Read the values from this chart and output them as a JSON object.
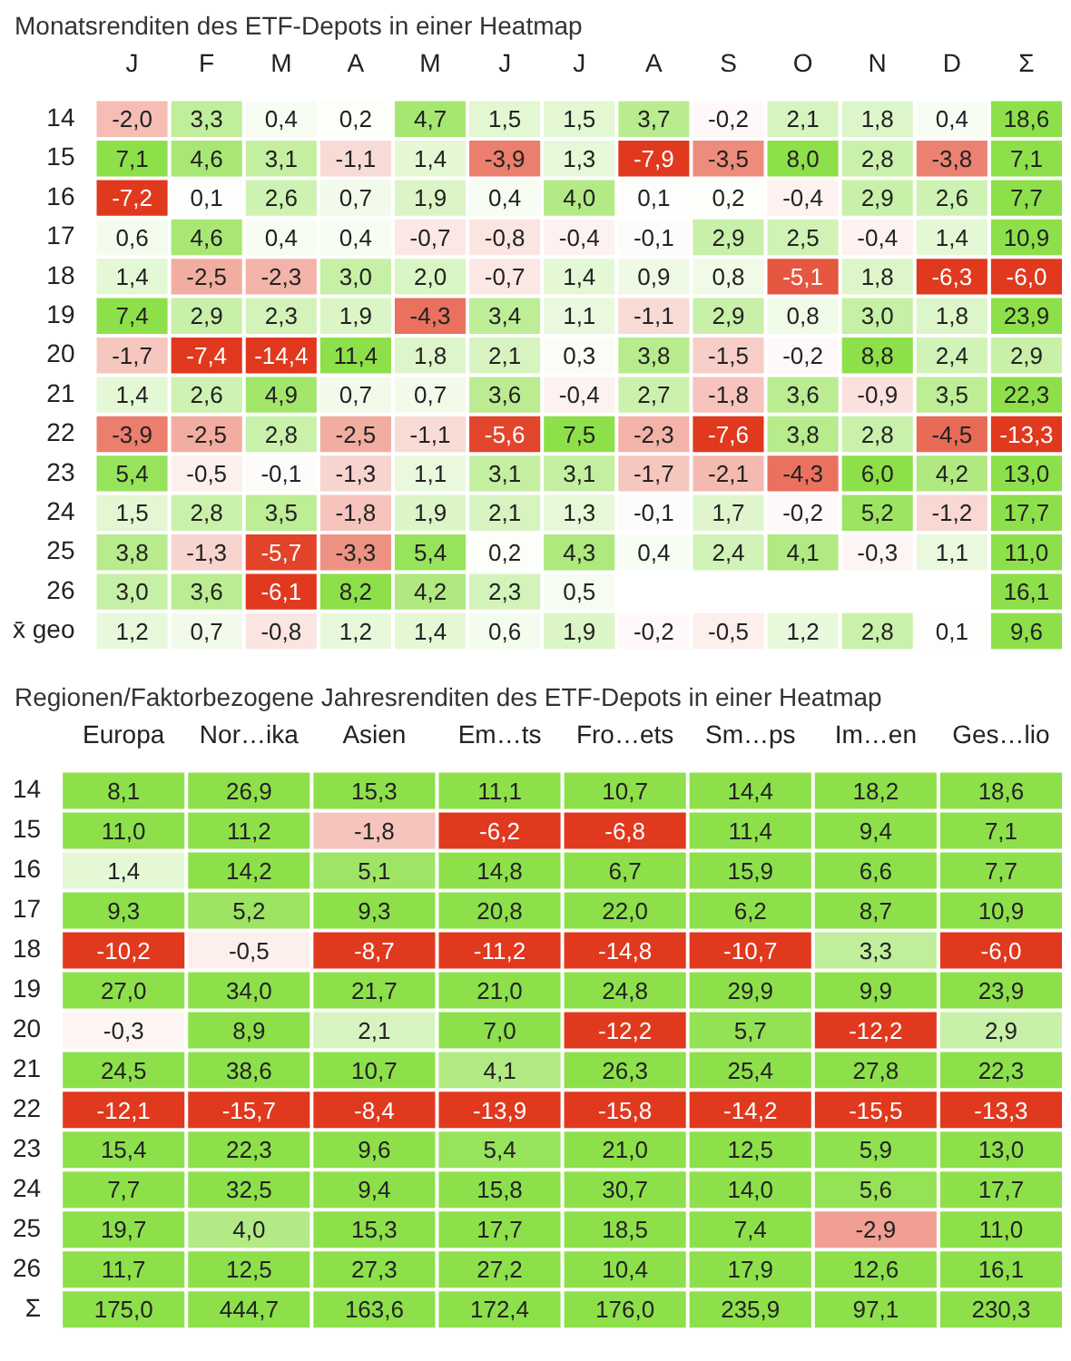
{
  "chart_data": [
    {
      "type": "heatmap",
      "title": "Monatsrenditen des ETF-Depots in einer Heatmap",
      "categories": [
        "J",
        "F",
        "M",
        "A",
        "M",
        "J",
        "J",
        "A",
        "S",
        "O",
        "N",
        "D",
        "Σ"
      ],
      "y_categories": [
        "14",
        "15",
        "16",
        "17",
        "18",
        "19",
        "20",
        "21",
        "22",
        "23",
        "24",
        "25",
        "26",
        "x̄ geo"
      ],
      "cells": [
        [
          -2.0,
          3.3,
          0.4,
          0.2,
          4.7,
          1.5,
          1.5,
          3.7,
          -0.2,
          2.1,
          1.8,
          0.4,
          18.6
        ],
        [
          7.1,
          4.6,
          3.1,
          -1.1,
          1.4,
          -3.9,
          1.3,
          -7.9,
          -3.5,
          8.0,
          2.8,
          -3.8,
          7.1
        ],
        [
          -7.2,
          0.1,
          2.6,
          0.7,
          1.9,
          0.4,
          4.0,
          0.1,
          0.2,
          -0.4,
          2.9,
          2.6,
          7.7
        ],
        [
          0.6,
          4.6,
          0.4,
          0.4,
          -0.7,
          -0.8,
          -0.4,
          -0.1,
          2.9,
          2.5,
          -0.4,
          1.4,
          10.9
        ],
        [
          1.4,
          -2.5,
          -2.3,
          3.0,
          2.0,
          -0.7,
          1.4,
          0.9,
          0.8,
          -5.1,
          1.8,
          -6.3,
          -6.0
        ],
        [
          7.4,
          2.9,
          2.3,
          1.9,
          -4.3,
          3.4,
          1.1,
          -1.1,
          2.9,
          0.8,
          3.0,
          1.8,
          23.9
        ],
        [
          -1.7,
          -7.4,
          -14.4,
          11.4,
          1.8,
          2.1,
          0.3,
          3.8,
          -1.5,
          -0.2,
          8.8,
          2.4,
          2.9
        ],
        [
          1.4,
          2.6,
          4.9,
          0.7,
          0.7,
          3.6,
          -0.4,
          2.7,
          -1.8,
          3.6,
          -0.9,
          3.5,
          22.3
        ],
        [
          -3.9,
          -2.5,
          2.8,
          -2.5,
          -1.1,
          -5.6,
          7.5,
          -2.3,
          -7.6,
          3.8,
          2.8,
          -4.5,
          -13.3
        ],
        [
          5.4,
          -0.5,
          -0.1,
          -1.3,
          1.1,
          3.1,
          3.1,
          -1.7,
          -2.1,
          -4.3,
          6.0,
          4.2,
          13.0
        ],
        [
          1.5,
          2.8,
          3.5,
          -1.8,
          1.9,
          2.1,
          1.3,
          -0.1,
          1.7,
          -0.2,
          5.2,
          -1.2,
          17.7
        ],
        [
          3.8,
          -1.3,
          -5.7,
          -3.3,
          5.4,
          0.2,
          4.3,
          0.4,
          2.4,
          4.1,
          -0.3,
          1.1,
          11.0
        ],
        [
          3.0,
          3.6,
          -6.1,
          8.2,
          4.2,
          2.3,
          0.5,
          null,
          null,
          null,
          null,
          null,
          16.1
        ],
        [
          1.2,
          0.7,
          -0.8,
          1.2,
          1.4,
          0.6,
          1.9,
          -0.2,
          -0.5,
          1.2,
          2.8,
          0.1,
          9.6
        ]
      ],
      "cell_labels": [
        [
          "-2,0",
          "3,3",
          "0,4",
          "0,2",
          "4,7",
          "1,5",
          "1,5",
          "3,7",
          "-0,2",
          "2,1",
          "1,8",
          "0,4",
          "18,6"
        ],
        [
          "7,1",
          "4,6",
          "3,1",
          "-1,1",
          "1,4",
          "-3,9",
          "1,3",
          "-7,9",
          "-3,5",
          "8,0",
          "2,8",
          "-3,8",
          "7,1"
        ],
        [
          "-7,2",
          "0,1",
          "2,6",
          "0,7",
          "1,9",
          "0,4",
          "4,0",
          "0,1",
          "0,2",
          "-0,4",
          "2,9",
          "2,6",
          "7,7"
        ],
        [
          "0,6",
          "4,6",
          "0,4",
          "0,4",
          "-0,7",
          "-0,8",
          "-0,4",
          "-0,1",
          "2,9",
          "2,5",
          "-0,4",
          "1,4",
          "10,9"
        ],
        [
          "1,4",
          "-2,5",
          "-2,3",
          "3,0",
          "2,0",
          "-0,7",
          "1,4",
          "0,9",
          "0,8",
          "-5,1",
          "1,8",
          "-6,3",
          "-6,0"
        ],
        [
          "7,4",
          "2,9",
          "2,3",
          "1,9",
          "-4,3",
          "3,4",
          "1,1",
          "-1,1",
          "2,9",
          "0,8",
          "3,0",
          "1,8",
          "23,9"
        ],
        [
          "-1,7",
          "-7,4",
          "-14,4",
          "11,4",
          "1,8",
          "2,1",
          "0,3",
          "3,8",
          "-1,5",
          "-0,2",
          "8,8",
          "2,4",
          "2,9"
        ],
        [
          "1,4",
          "2,6",
          "4,9",
          "0,7",
          "0,7",
          "3,6",
          "-0,4",
          "2,7",
          "-1,8",
          "3,6",
          "-0,9",
          "3,5",
          "22,3"
        ],
        [
          "-3,9",
          "-2,5",
          "2,8",
          "-2,5",
          "-1,1",
          "-5,6",
          "7,5",
          "-2,3",
          "-7,6",
          "3,8",
          "2,8",
          "-4,5",
          "-13,3"
        ],
        [
          "5,4",
          "-0,5",
          "-0,1",
          "-1,3",
          "1,1",
          "3,1",
          "3,1",
          "-1,7",
          "-2,1",
          "-4,3",
          "6,0",
          "4,2",
          "13,0"
        ],
        [
          "1,5",
          "2,8",
          "3,5",
          "-1,8",
          "1,9",
          "2,1",
          "1,3",
          "-0,1",
          "1,7",
          "-0,2",
          "5,2",
          "-1,2",
          "17,7"
        ],
        [
          "3,8",
          "-1,3",
          "-5,7",
          "-3,3",
          "5,4",
          "0,2",
          "4,3",
          "0,4",
          "2,4",
          "4,1",
          "-0,3",
          "1,1",
          "11,0"
        ],
        [
          "3,0",
          "3,6",
          "-6,1",
          "8,2",
          "4,2",
          "2,3",
          "0,5",
          null,
          null,
          null,
          null,
          null,
          "16,1"
        ],
        [
          "1,2",
          "0,7",
          "-0,8",
          "1,2",
          "1,4",
          "0,6",
          "1,9",
          "-0,2",
          "-0,5",
          "1,2",
          "2,8",
          "0,1",
          "9,6"
        ]
      ]
    },
    {
      "type": "heatmap",
      "title": "Regionen/Faktorbezogene Jahresrenditen des ETF-Depots in einer Heatmap",
      "categories": [
        "Europa",
        "Nor…ika",
        "Asien",
        "Em…ts",
        "Fro…ets",
        "Sm…ps",
        "Im…en",
        "Ges…lio"
      ],
      "y_categories": [
        "14",
        "15",
        "16",
        "17",
        "18",
        "19",
        "20",
        "21",
        "22",
        "23",
        "24",
        "25",
        "26",
        "Σ"
      ],
      "cells": [
        [
          8.1,
          26.9,
          15.3,
          11.1,
          10.7,
          14.4,
          18.2,
          18.6
        ],
        [
          11.0,
          11.2,
          -1.8,
          -6.2,
          -6.8,
          11.4,
          9.4,
          7.1
        ],
        [
          1.4,
          14.2,
          5.1,
          14.8,
          6.7,
          15.9,
          6.6,
          7.7
        ],
        [
          9.3,
          5.2,
          9.3,
          20.8,
          22.0,
          6.2,
          8.7,
          10.9
        ],
        [
          -10.2,
          -0.5,
          -8.7,
          -11.2,
          -14.8,
          -10.7,
          3.3,
          -6.0
        ],
        [
          27.0,
          34.0,
          21.7,
          21.0,
          24.8,
          29.9,
          9.9,
          23.9
        ],
        [
          -0.3,
          8.9,
          2.1,
          7.0,
          -12.2,
          5.7,
          -12.2,
          2.9
        ],
        [
          24.5,
          38.6,
          10.7,
          4.1,
          26.3,
          25.4,
          27.8,
          22.3
        ],
        [
          -12.1,
          -15.7,
          -8.4,
          -13.9,
          -15.8,
          -14.2,
          -15.5,
          -13.3
        ],
        [
          15.4,
          22.3,
          9.6,
          5.4,
          21.0,
          12.5,
          5.9,
          13.0
        ],
        [
          7.7,
          32.5,
          9.4,
          15.8,
          30.7,
          14.0,
          5.6,
          17.7
        ],
        [
          19.7,
          4.0,
          15.3,
          17.7,
          18.5,
          7.4,
          -2.9,
          11.0
        ],
        [
          11.7,
          12.5,
          27.3,
          27.2,
          10.4,
          17.9,
          12.6,
          16.1
        ],
        [
          175.0,
          444.7,
          163.6,
          172.4,
          176.0,
          235.9,
          97.1,
          230.3
        ]
      ],
      "cell_labels": [
        [
          "8,1",
          "26,9",
          "15,3",
          "11,1",
          "10,7",
          "14,4",
          "18,2",
          "18,6"
        ],
        [
          "11,0",
          "11,2",
          "-1,8",
          "-6,2",
          "-6,8",
          "11,4",
          "9,4",
          "7,1"
        ],
        [
          "1,4",
          "14,2",
          "5,1",
          "14,8",
          "6,7",
          "15,9",
          "6,6",
          "7,7"
        ],
        [
          "9,3",
          "5,2",
          "9,3",
          "20,8",
          "22,0",
          "6,2",
          "8,7",
          "10,9"
        ],
        [
          "-10,2",
          "-0,5",
          "-8,7",
          "-11,2",
          "-14,8",
          "-10,7",
          "3,3",
          "-6,0"
        ],
        [
          "27,0",
          "34,0",
          "21,7",
          "21,0",
          "24,8",
          "29,9",
          "9,9",
          "23,9"
        ],
        [
          "-0,3",
          "8,9",
          "2,1",
          "7,0",
          "-12,2",
          "5,7",
          "-12,2",
          "2,9"
        ],
        [
          "24,5",
          "38,6",
          "10,7",
          "4,1",
          "26,3",
          "25,4",
          "27,8",
          "22,3"
        ],
        [
          "-12,1",
          "-15,7",
          "-8,4",
          "-13,9",
          "-15,8",
          "-14,2",
          "-15,5",
          "-13,3"
        ],
        [
          "15,4",
          "22,3",
          "9,6",
          "5,4",
          "21,0",
          "12,5",
          "5,9",
          "13,0"
        ],
        [
          "7,7",
          "32,5",
          "9,4",
          "15,8",
          "30,7",
          "14,0",
          "5,6",
          "17,7"
        ],
        [
          "19,7",
          "4,0",
          "15,3",
          "17,7",
          "18,5",
          "7,4",
          "-2,9",
          "11,0"
        ],
        [
          "11,7",
          "12,5",
          "27,3",
          "27,2",
          "10,4",
          "17,9",
          "12,6",
          "16,1"
        ],
        [
          "175,0",
          "444,7",
          "163,6",
          "172,4",
          "176,0",
          "235,9",
          "97,1",
          "230,3"
        ]
      ]
    }
  ]
}
